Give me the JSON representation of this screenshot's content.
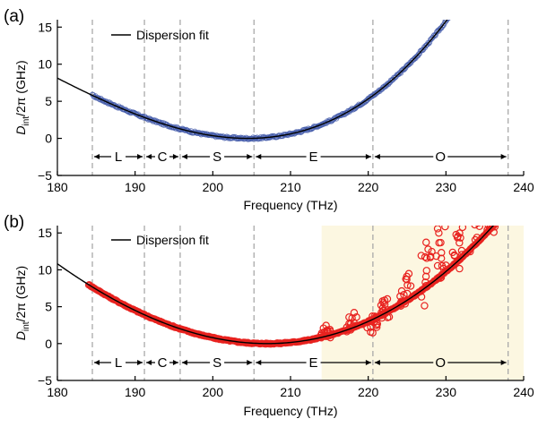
{
  "chart_data": [
    {
      "panel_label": "(a)",
      "type": "scatter",
      "xlabel": "Frequency (THz)",
      "ylabel_main": "D",
      "ylabel_sub": "int",
      "ylabel_tail": "/2π (GHz)",
      "xlim": [
        180,
        240
      ],
      "ylim": [
        -5,
        16
      ],
      "xticks": [
        "180",
        "190",
        "200",
        "210",
        "220",
        "230",
        "240"
      ],
      "yticks": [
        "15",
        "10",
        "5",
        "0",
        "−5"
      ],
      "legend": {
        "label": "Dispersion fit",
        "placement": "top-left"
      },
      "bands": [
        {
          "label": "L",
          "start": 184.5,
          "end": 191.2
        },
        {
          "label": "C",
          "start": 191.2,
          "end": 195.8
        },
        {
          "label": "S",
          "start": 195.8,
          "end": 205.3
        },
        {
          "label": "E",
          "start": 205.3,
          "end": 220.6
        },
        {
          "label": "O",
          "start": 220.6,
          "end": 238.0
        }
      ],
      "band_dividers": [
        184.5,
        191.2,
        195.8,
        205.3,
        220.6,
        238.0
      ],
      "fit": {
        "center": 204.5,
        "quadratic": 0.0188,
        "cubic": 0.000215
      },
      "series": [
        {
          "name": "",
          "kind": "measured",
          "color": "#3f57a8",
          "x_range": [
            184.5,
            238.0
          ],
          "noise": 0.15
        }
      ],
      "highlight": null,
      "colors": {
        "fit": "#000000",
        "divider": "#a9a9a9",
        "marker": "#3f57a8"
      }
    },
    {
      "panel_label": "(b)",
      "type": "scatter",
      "xlabel": "Frequency (THz)",
      "ylabel_main": "D",
      "ylabel_sub": "int",
      "ylabel_tail": "/2π (GHz)",
      "xlim": [
        180,
        240
      ],
      "ylim": [
        -5,
        16
      ],
      "xticks": [
        "180",
        "190",
        "200",
        "210",
        "220",
        "230",
        "240"
      ],
      "yticks": [
        "15",
        "10",
        "5",
        "0",
        "−5"
      ],
      "legend": {
        "label": "Dispersion fit",
        "placement": "top-left"
      },
      "bands": [
        {
          "label": "L",
          "start": 184.5,
          "end": 191.2
        },
        {
          "label": "C",
          "start": 191.2,
          "end": 195.8
        },
        {
          "label": "S",
          "start": 195.8,
          "end": 205.3
        },
        {
          "label": "E",
          "start": 205.3,
          "end": 220.6
        },
        {
          "label": "O",
          "start": 220.6,
          "end": 238.0
        }
      ],
      "band_dividers": [
        184.5,
        191.2,
        195.8,
        205.3,
        220.6,
        238.0
      ],
      "fit": {
        "center": 207.0,
        "quadratic": 0.0168,
        "cubic": 7.25e-05
      },
      "series": [
        {
          "name": "",
          "kind": "measured",
          "color": "#e8221f",
          "x_range": [
            184.0,
            238.0
          ],
          "noise": 0.1
        }
      ],
      "scatter_bursts": [
        {
          "x": 214.5,
          "spread": [
            -0.5,
            1.5
          ]
        },
        {
          "x": 217.8,
          "spread": [
            -0.5,
            2.0
          ]
        },
        {
          "x": 220.5,
          "spread": [
            -2.0,
            1.0
          ]
        },
        {
          "x": 222.3,
          "spread": [
            -1.0,
            2.0
          ]
        },
        {
          "x": 224.8,
          "spread": [
            -1.0,
            3.5
          ]
        },
        {
          "x": 227.5,
          "spread": [
            -2.5,
            6.5
          ]
        },
        {
          "x": 229.3,
          "spread": [
            -1.0,
            7.0
          ]
        },
        {
          "x": 231.5,
          "spread": [
            -1.5,
            5.0
          ]
        },
        {
          "x": 233.8,
          "spread": [
            -1.0,
            7.5
          ]
        },
        {
          "x": 236.0,
          "spread": [
            -2.5,
            8.5
          ]
        },
        {
          "x": 237.8,
          "spread": [
            -1.0,
            4.5
          ]
        }
      ],
      "highlight": {
        "start": 214.0,
        "end": 240.0,
        "color": "#fcf7e1"
      },
      "colors": {
        "fit": "#000000",
        "divider": "#a9a9a9",
        "marker": "#e8221f"
      }
    }
  ]
}
